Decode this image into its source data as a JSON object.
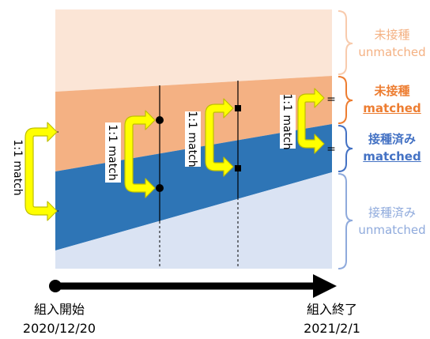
{
  "colors": {
    "unvac_unmatched_fill": "#fbe5d6",
    "unvac_matched_fill": "#f4b183",
    "vac_matched_fill": "#2e75b6",
    "vac_unmatched_fill": "#dae3f3",
    "arrow_fill": "#ffff00",
    "arrow_stroke": "#c9c900",
    "unvac_unmatched_text": "#f4b183",
    "unvac_matched_text": "#ed7d31",
    "vac_matched_text": "#4472c4",
    "vac_unmatched_text": "#8faadc"
  },
  "categories": {
    "unvaccinated_unmatched": {
      "line1": "未接種",
      "line2": "unmatched"
    },
    "unvaccinated_matched": {
      "line1": "未接種",
      "line2": "matched"
    },
    "vaccinated_matched": {
      "line1": "接種済み",
      "line2": "matched"
    },
    "vaccinated_unmatched": {
      "line1": "接種済み",
      "line2": "unmatched"
    }
  },
  "match_label": "1:1 match",
  "equals_sign": "=",
  "timeline": {
    "start_label": "組入開始",
    "start_date": "2020/12/20",
    "end_label": "組入終了",
    "end_date": "2021/2/1"
  }
}
